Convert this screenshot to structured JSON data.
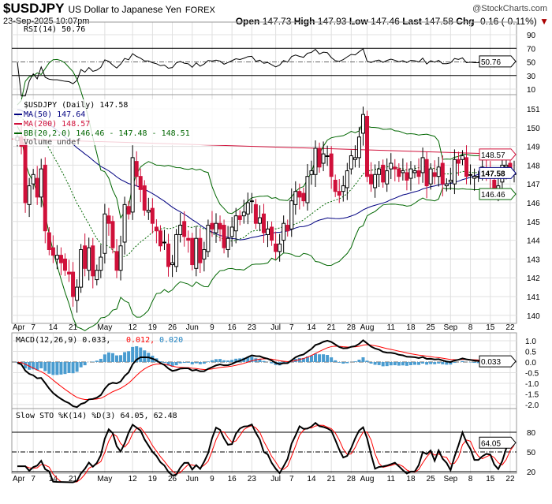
{
  "header": {
    "symbol": "$USDJPY",
    "name": "US Dollar to Japanese Yen",
    "exchange": "FOREX",
    "datetime": "23-Sep-2025 10:07pm",
    "brand": "@StockCharts.com",
    "open_label": "Open",
    "open": "147.73",
    "high_label": "High",
    "high": "147.93",
    "low_label": "Low",
    "low": "147.46",
    "last_label": "Last",
    "last": "147.58",
    "chg_label": "Chg",
    "chg": "-0.16 (-0.11%)"
  },
  "colors": {
    "up": "#000000",
    "down": "#d0103a",
    "ma50": "#000080",
    "ma200": "#d0103a",
    "bb": "#006600",
    "rsi": "#000000",
    "macd_hist": "#4a9cd0",
    "signal": "#ff0000",
    "sto_k": "#000000",
    "sto_d": "#ff0000",
    "grid": "#e0e0e0"
  },
  "legend": {
    "rsi": "RSI(14) 50.76",
    "price": "$USDJPY (Daily) 147.58",
    "ma50": "MA(50) 147.64",
    "ma200": "MA(200) 148.57",
    "bb": "BB(20,2.0) 146.46 - 147.48 - 148.51",
    "volume": "Volume undef",
    "macd_a": "MACD(12,26,9) 0.033,",
    "macd_b": "0.012,",
    "macd_c": "0.020",
    "sto": "Slow STO %K(14) %D(3) 64.05, 62.48"
  },
  "tags": {
    "rsi": "50.76",
    "ma200": "148.57",
    "last": "147.58",
    "bb_low": "146.46",
    "macd": "0.033",
    "sto": "64.05"
  },
  "chart_data": {
    "type": "candlestick",
    "title": "$USDJPY Daily",
    "x_labels": [
      {
        "i": 0,
        "t": "Apr"
      },
      {
        "i": 4,
        "t": "7"
      },
      {
        "i": 9,
        "t": "14"
      },
      {
        "i": 14,
        "t": "21"
      },
      {
        "i": 22,
        "t": "May"
      },
      {
        "i": 29,
        "t": "12"
      },
      {
        "i": 34,
        "t": "19"
      },
      {
        "i": 39,
        "t": "26"
      },
      {
        "i": 44,
        "t": "Jun"
      },
      {
        "i": 49,
        "t": "9"
      },
      {
        "i": 54,
        "t": "16"
      },
      {
        "i": 59,
        "t": "23"
      },
      {
        "i": 65,
        "t": "Jul"
      },
      {
        "i": 69,
        "t": "7"
      },
      {
        "i": 74,
        "t": "14"
      },
      {
        "i": 79,
        "t": "21"
      },
      {
        "i": 84,
        "t": "28"
      },
      {
        "i": 88,
        "t": "Aug"
      },
      {
        "i": 94,
        "t": "11"
      },
      {
        "i": 99,
        "t": "18"
      },
      {
        "i": 104,
        "t": "25"
      },
      {
        "i": 109,
        "t": "Sep"
      },
      {
        "i": 114,
        "t": "8"
      },
      {
        "i": 119,
        "t": "15"
      },
      {
        "i": 124,
        "t": "22"
      }
    ],
    "price_ylim": [
      139.5,
      151.8
    ],
    "price_ticks": [
      140,
      141,
      142,
      143,
      144,
      145,
      146,
      147,
      148,
      149,
      150,
      151
    ],
    "close": [
      149.5,
      149,
      146,
      146.9,
      147.5,
      146.3,
      147.8,
      144.5,
      143.5,
      143.2,
      143.2,
      142.8,
      142.4,
      142.2,
      141,
      141.5,
      143.5,
      142.5,
      143.6,
      142.1,
      142.4,
      143.1,
      145.4,
      144.9,
      143.6,
      142.4,
      143.7,
      145.9,
      145.4,
      148.4,
      147.4,
      146.7,
      145.6,
      145.6,
      144.9,
      144.5,
      143.7,
      143.9,
      142.6,
      142.8,
      144.3,
      144.8,
      144.2,
      144,
      142.7,
      144.1,
      142.8,
      143.5,
      144.8,
      144.6,
      144.9,
      144.6,
      143.6,
      144.1,
      144.7,
      145.3,
      145.1,
      145.5,
      146,
      146.1,
      144.9,
      145.2,
      144.4,
      144.6,
      144,
      143.4,
      143.8,
      144.9,
      144.5,
      146.1,
      146.6,
      146.3,
      146.1,
      147.4,
      147.7,
      148.9,
      147.9,
      148.6,
      148.5,
      147.4,
      146.6,
      146.4,
      146.9,
      147.7,
      148.5,
      148.4,
      149.5,
      150.7,
      147.4,
      147,
      147.5,
      147.8,
      147.1,
      147.7,
      148.1,
      147.8,
      147.4,
      147.7,
      147.2,
      147.8,
      147.7,
      147.4,
      148.4,
      146.9,
      147.8,
      147.4,
      147.9,
      147,
      147,
      147.2,
      148.3,
      148.1,
      148.5,
      147.4,
      147.5,
      147.4,
      147.4,
      147.9,
      147.7,
      147.4,
      146.5,
      146.9,
      148,
      148,
      147.7,
      147.58
    ],
    "ma200": [
      149.4,
      148.57
    ],
    "rsi_ticks": [
      10,
      30,
      50,
      70,
      90
    ],
    "macd_ticks": [
      "1.0",
      "0.5",
      "0.0",
      "-0.5",
      "-1.0",
      "-1.5",
      "-2.0"
    ],
    "sto_ticks": [
      20,
      50,
      80
    ]
  }
}
